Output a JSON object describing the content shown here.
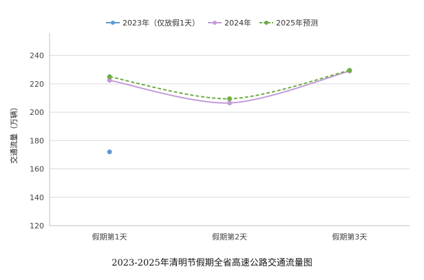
{
  "chart_data": {
    "type": "line",
    "title": "2023-2025年清明节假期全省高速公路交通流量图",
    "xlabel": "",
    "ylabel": "交通流量（万辆）",
    "categories": [
      "假期第1天",
      "假期第2天",
      "假期第3天"
    ],
    "ylim": [
      120,
      250
    ],
    "yticks": [
      120,
      140,
      160,
      180,
      200,
      220,
      240
    ],
    "grid": true,
    "legend_position": "top",
    "series": [
      {
        "name": "2023年（仅放假1天）",
        "values": [
          172,
          null,
          null
        ],
        "color": "#5b9bd5",
        "style": "markers-only"
      },
      {
        "name": "2024年",
        "values": [
          222.5,
          206.5,
          229
        ],
        "color": "#c39bd9",
        "style": "smooth-solid"
      },
      {
        "name": "2025年预测",
        "values": [
          225,
          209.5,
          229.5
        ],
        "color": "#70ad47",
        "style": "smooth-dashed"
      }
    ]
  }
}
